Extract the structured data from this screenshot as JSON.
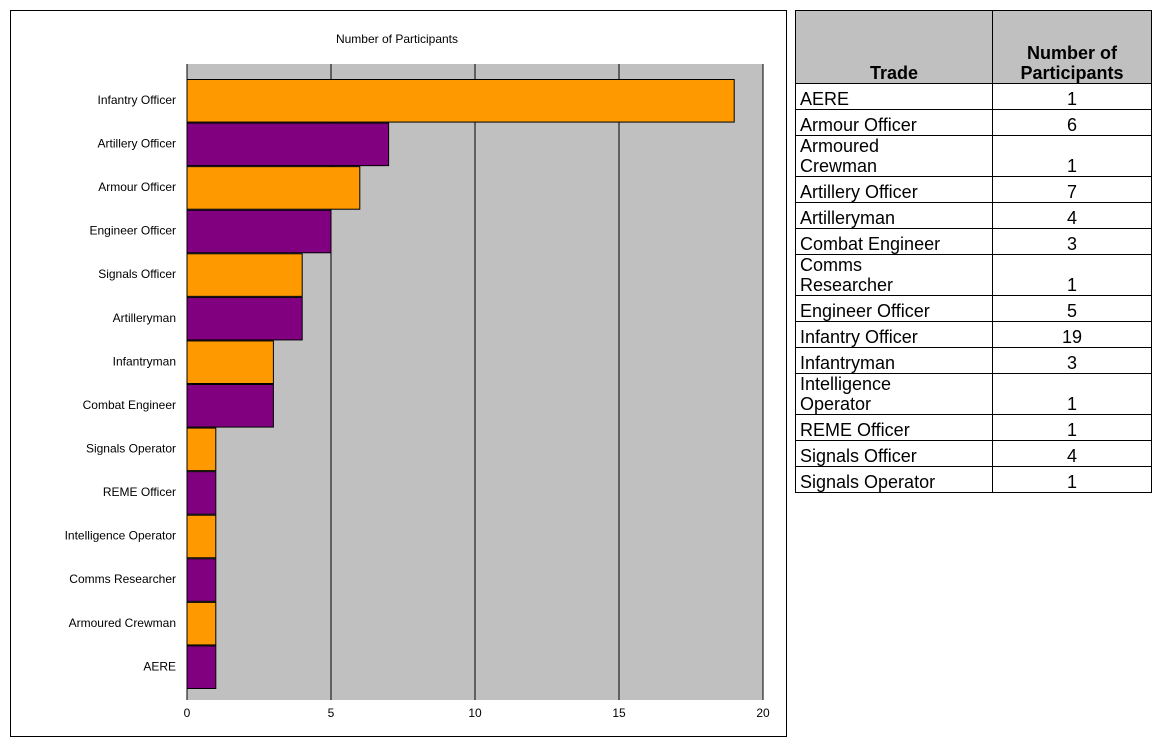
{
  "chart_data": {
    "type": "bar",
    "orientation": "horizontal",
    "title": "Number of Participants",
    "categories": [
      "Infantry Officer",
      "Artillery Officer",
      "Armour Officer",
      "Engineer Officer",
      "Signals Officer",
      "Artilleryman",
      "Infantryman",
      "Combat Engineer",
      "Signals Operator",
      "REME Officer",
      "Intelligence Operator",
      "Comms Researcher",
      "Armoured Crewman",
      "AERE"
    ],
    "values": [
      19,
      7,
      6,
      5,
      4,
      4,
      3,
      3,
      1,
      1,
      1,
      1,
      1,
      1
    ],
    "colors": [
      "#ff9900",
      "#800080",
      "#ff9900",
      "#800080",
      "#ff9900",
      "#800080",
      "#ff9900",
      "#800080",
      "#ff9900",
      "#800080",
      "#ff9900",
      "#800080",
      "#ff9900",
      "#800080"
    ],
    "xlim": [
      0,
      20
    ],
    "xticks": [
      0,
      5,
      10,
      15,
      20
    ],
    "grid": true
  },
  "table": {
    "header": [
      "Trade",
      "Number of Participants"
    ],
    "rows": [
      [
        "AERE",
        1
      ],
      [
        "Armour Officer",
        6
      ],
      [
        "Armoured Crewman",
        1
      ],
      [
        "Artillery Officer",
        7
      ],
      [
        "Artilleryman",
        4
      ],
      [
        "Combat Engineer",
        3
      ],
      [
        "Comms Researcher",
        1
      ],
      [
        "Engineer Officer",
        5
      ],
      [
        "Infantry Officer",
        19
      ],
      [
        "Infantryman",
        3
      ],
      [
        "Intelligence Operator",
        1
      ],
      [
        "REME Officer",
        1
      ],
      [
        "Signals Officer",
        4
      ],
      [
        "Signals Operator",
        1
      ]
    ]
  }
}
